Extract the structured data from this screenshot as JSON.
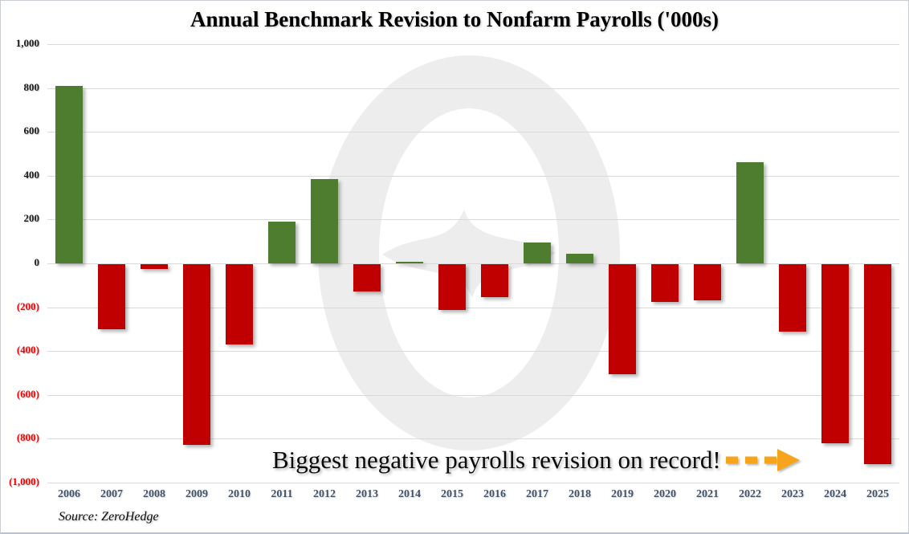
{
  "chart_data": {
    "type": "bar",
    "title": "Annual Benchmark Revision to Nonfarm Payrolls ('000s)",
    "categories": [
      "2006",
      "2007",
      "2008",
      "2009",
      "2010",
      "2011",
      "2012",
      "2013",
      "2014",
      "2015",
      "2016",
      "2017",
      "2018",
      "2019",
      "2020",
      "2021",
      "2022",
      "2023",
      "2024",
      "2025"
    ],
    "values": [
      810,
      -297,
      -21,
      -824,
      -366,
      192,
      386,
      -124,
      7,
      -208,
      -150,
      95,
      43,
      -501,
      -173,
      -166,
      462,
      -306,
      -818,
      -911
    ],
    "xlabel": "",
    "ylabel": "",
    "ylim": [
      -1000,
      1000
    ],
    "ytick_step": 200,
    "grid": true,
    "legend": "none",
    "positive_color": "#4e7d2f",
    "negative_color": "#c00000",
    "negative_tick_format": "parentheses"
  },
  "annotation": {
    "text": "Biggest negative payrolls revision on record!"
  },
  "footer": {
    "source": "Source: ZeroHedge"
  },
  "colors": {
    "positive_bar": "#4e7d2f",
    "negative_bar": "#c00000",
    "negative_tick": "#f00505",
    "positive_tick": "#1a1a1a",
    "year_label": "#44546a",
    "gridline": "#d9d9d9",
    "watermark": "#ededed",
    "arrow": "#f7a41d"
  }
}
